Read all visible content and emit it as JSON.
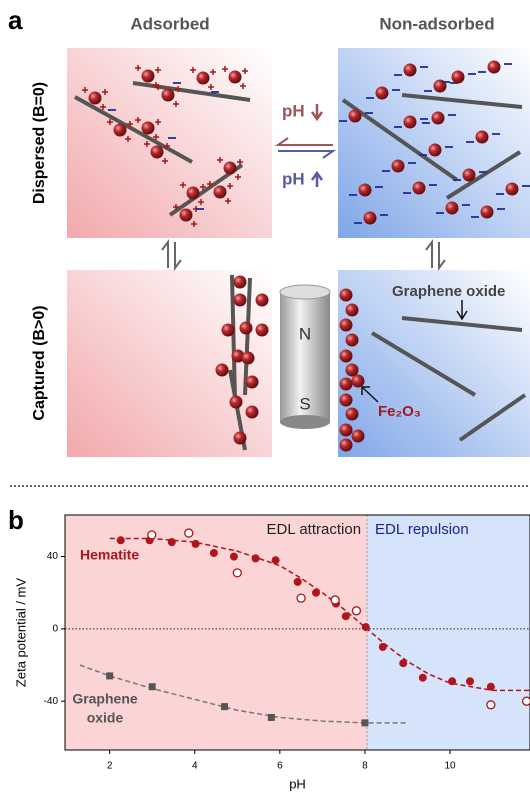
{
  "panel_a": {
    "label": "a",
    "col_left": "Adsorbed",
    "col_right": "Non-adsorbed",
    "row_top": "Dispersed (B=0)",
    "row_bottom": "Captured (B>0)",
    "ph_down": "pH",
    "ph_up": "pH",
    "graphene_label": "Graphene oxide",
    "fe_label": "Fe₂O₃",
    "magnet_n": "N",
    "magnet_s": "S"
  },
  "chart_data": {
    "type": "scatter",
    "panel_label": "b",
    "x_label": "pH",
    "y_label": "Zeta potential / mV",
    "xlim": [
      0.95,
      11.88
    ],
    "ylim": [
      -67,
      63
    ],
    "xticks": [
      2,
      4,
      6,
      8,
      10
    ],
    "yticks": [
      40,
      0,
      -40
    ],
    "boundary_x": 8.05,
    "left_region": "EDL attraction",
    "right_region": "EDL repulsion",
    "series": [
      {
        "name": "Hematite",
        "color": "#b0141c",
        "marker": "circle",
        "x": [
          2.26,
          2.94,
          3.46,
          4.02,
          4.45,
          4.92,
          5.43,
          5.9,
          6.42,
          6.85,
          7.32,
          7.55,
          8.02,
          8.42,
          8.9,
          9.36,
          10.05,
          10.47,
          10.96
        ],
        "values": [
          49,
          49,
          48,
          47,
          42,
          40,
          39,
          38,
          26,
          20,
          14,
          7,
          1,
          -10,
          -19,
          -27,
          -29,
          -29,
          -32
        ]
      },
      {
        "color": "#b0141c",
        "marker": "open-circle",
        "x": [
          2.99,
          3.86,
          5.0,
          6.5,
          7.3,
          7.8,
          10.96,
          11.8
        ],
        "values": [
          52,
          53,
          31,
          17,
          16,
          10,
          -42,
          -40
        ]
      },
      {
        "label": [
          "Graphene",
          "oxide"
        ],
        "color": "#555555",
        "marker": "square",
        "x": [
          2,
          3,
          4.7,
          5.8,
          8
        ],
        "values": [
          -26,
          -32,
          -43,
          -49,
          -52
        ]
      }
    ],
    "fits": [
      {
        "color": "#b0141c",
        "x": [
          2,
          3,
          4,
          5,
          6,
          6.5,
          7,
          7.5,
          8,
          8.5,
          9,
          9.5,
          10,
          10.5,
          11,
          11.88
        ],
        "values": [
          50,
          50,
          48,
          43,
          35,
          28,
          20,
          11,
          1,
          -9,
          -18,
          -25,
          -30,
          -32,
          -34,
          -34
        ]
      },
      {
        "color": "#777777",
        "x": [
          1.3,
          2,
          3,
          4,
          5,
          6,
          7,
          8,
          9
        ],
        "values": [
          -20,
          -26,
          -33,
          -39,
          -45,
          -49,
          -51,
          -52,
          -52
        ]
      }
    ]
  }
}
